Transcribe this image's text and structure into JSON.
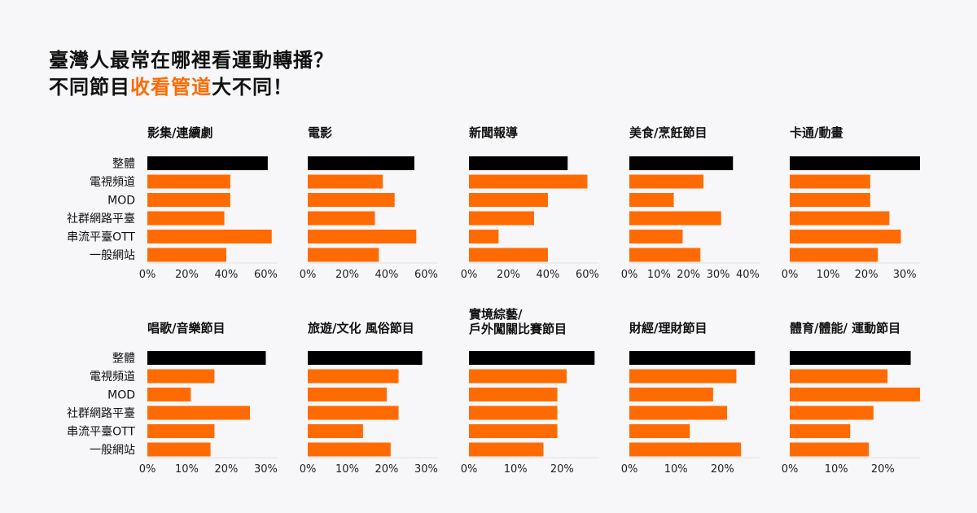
{
  "headline": {
    "line1": "臺灣人最常在哪裡看運動轉播？",
    "line2_prefix": "不同節目",
    "line2_highlight": "收看管道",
    "line2_suffix": "大不同！"
  },
  "colors": {
    "overall": "#000000",
    "channel": "#ff6b00",
    "highlight": "#ff6b00",
    "background": "#f7f6f8"
  },
  "chart_data": [
    {
      "type": "bar",
      "title": "影集/連續劇",
      "categories": [
        "整體",
        "電視頻道",
        "MOD",
        "社群網路平臺",
        "串流平臺OTT",
        "一般網站"
      ],
      "values": [
        61,
        42,
        42,
        39,
        63,
        40
      ],
      "ticks": [
        "0%",
        "20%",
        "40%",
        "60%"
      ],
      "xlim": [
        0,
        66
      ]
    },
    {
      "type": "bar",
      "title": "電影",
      "categories": [
        "整體",
        "電視頻道",
        "MOD",
        "社群網路平臺",
        "串流平臺OTT",
        "一般網站"
      ],
      "values": [
        54,
        38,
        44,
        34,
        55,
        36
      ],
      "ticks": [
        "0%",
        "20%",
        "40%",
        "60%"
      ],
      "xlim": [
        0,
        66
      ]
    },
    {
      "type": "bar",
      "title": "新聞報導",
      "categories": [
        "整體",
        "電視頻道",
        "MOD",
        "社群網路平臺",
        "串流平臺OTT",
        "一般網站"
      ],
      "values": [
        50,
        60,
        40,
        33,
        15,
        40
      ],
      "ticks": [
        "0%",
        "20%",
        "40%",
        "60%"
      ],
      "xlim": [
        0,
        66
      ]
    },
    {
      "type": "bar",
      "title": "美食/烹飪節目",
      "categories": [
        "整體",
        "電視頻道",
        "MOD",
        "社群網路平臺",
        "串流平臺OTT",
        "一般網站"
      ],
      "values": [
        35,
        25,
        15,
        31,
        18,
        24
      ],
      "ticks": [
        "0%",
        "10%",
        "20%",
        "30%",
        "40%"
      ],
      "xlim": [
        0,
        44
      ]
    },
    {
      "type": "bar",
      "title": "卡通/動畫",
      "categories": [
        "整體",
        "電視頻道",
        "MOD",
        "社群網路平臺",
        "串流平臺OTT",
        "一般網站"
      ],
      "values": [
        34,
        21,
        21,
        26,
        29,
        23
      ],
      "ticks": [
        "0%",
        "10%",
        "20%",
        "30%"
      ],
      "xlim": [
        0,
        34
      ]
    },
    {
      "type": "bar",
      "title": "唱歌/音樂節目",
      "categories": [
        "整體",
        "電視頻道",
        "MOD",
        "社群網路平臺",
        "串流平臺OTT",
        "一般網站"
      ],
      "values": [
        30,
        17,
        11,
        26,
        17,
        16
      ],
      "ticks": [
        "0%",
        "10%",
        "20%",
        "30%"
      ],
      "xlim": [
        0,
        33
      ]
    },
    {
      "type": "bar",
      "title": "旅遊/文化 風俗節目",
      "categories": [
        "整體",
        "電視頻道",
        "MOD",
        "社群網路平臺",
        "串流平臺OTT",
        "一般網站"
      ],
      "values": [
        29,
        23,
        20,
        23,
        14,
        21
      ],
      "ticks": [
        "0%",
        "10%",
        "20%",
        "30%"
      ],
      "xlim": [
        0,
        33
      ]
    },
    {
      "type": "bar",
      "title": "實境綜藝/\n戶外闖關比賽節目",
      "categories": [
        "整體",
        "電視頻道",
        "MOD",
        "社群網路平臺",
        "串流平臺OTT",
        "一般網站"
      ],
      "values": [
        27,
        21,
        19,
        19,
        19,
        16
      ],
      "ticks": [
        "0%",
        "10%",
        "20%"
      ],
      "xlim": [
        0,
        28
      ]
    },
    {
      "type": "bar",
      "title": "財經/理財節目",
      "categories": [
        "整體",
        "電視頻道",
        "MOD",
        "社群網路平臺",
        "串流平臺OTT",
        "一般網站"
      ],
      "values": [
        27,
        23,
        18,
        21,
        13,
        24
      ],
      "ticks": [
        "0%",
        "10%",
        "20%"
      ],
      "xlim": [
        0,
        28
      ]
    },
    {
      "type": "bar",
      "title": "體育/體能/ 運動節目",
      "categories": [
        "整體",
        "電視頻道",
        "MOD",
        "社群網路平臺",
        "串流平臺OTT",
        "一般網站"
      ],
      "values": [
        26,
        21,
        28,
        18,
        13,
        17
      ],
      "ticks": [
        "0%",
        "10%",
        "20%"
      ],
      "xlim": [
        0,
        28
      ]
    }
  ]
}
